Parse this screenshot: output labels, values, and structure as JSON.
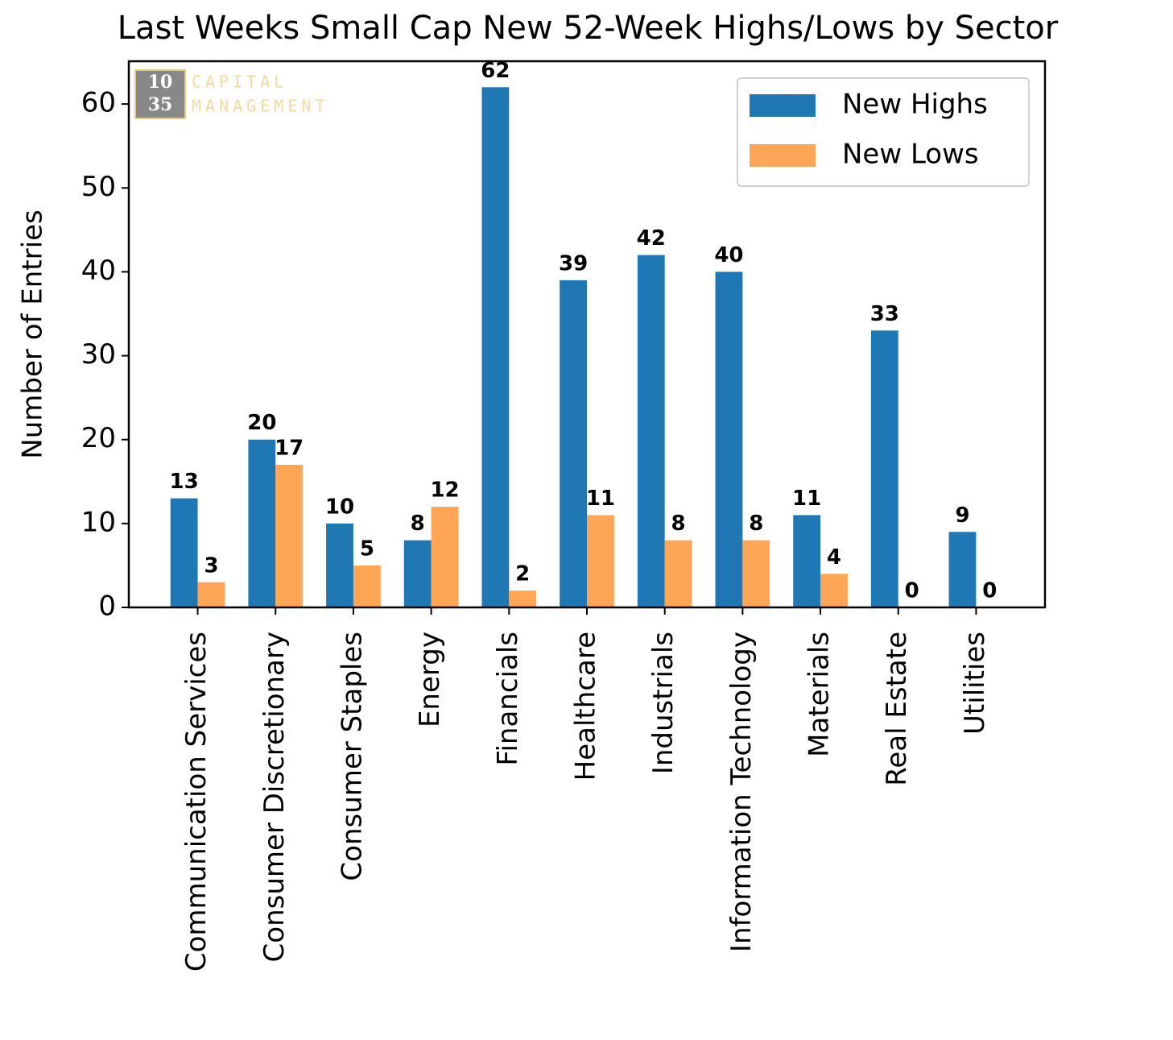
{
  "chart_data": {
    "type": "bar",
    "title": "Last Weeks Small Cap New 52-Week Highs/Lows by Sector",
    "y_label": "Number of Entries",
    "categories": [
      "Communication Services",
      "Consumer Discretionary",
      "Consumer Staples",
      "Energy",
      "Financials",
      "Healthcare",
      "Industrials",
      "Information Technology",
      "Materials",
      "Real Estate",
      "Utilities"
    ],
    "series": [
      {
        "name": "New Highs",
        "color": "#1f77b4",
        "values": [
          13,
          20,
          10,
          8,
          62,
          39,
          42,
          40,
          11,
          33,
          9
        ]
      },
      {
        "name": "New Lows",
        "color": "#ffa556",
        "values": [
          3,
          17,
          5,
          12,
          2,
          11,
          8,
          8,
          4,
          0,
          0
        ]
      }
    ],
    "ylim": [
      0,
      65.1
    ],
    "yticks": [
      0,
      10,
      20,
      30,
      40,
      50,
      60
    ],
    "grid": false,
    "legend": "upper-right",
    "watermark": {
      "logo": [
        "10",
        "35"
      ],
      "text": [
        "CAPITAL",
        "MANAGEMENT"
      ]
    }
  }
}
